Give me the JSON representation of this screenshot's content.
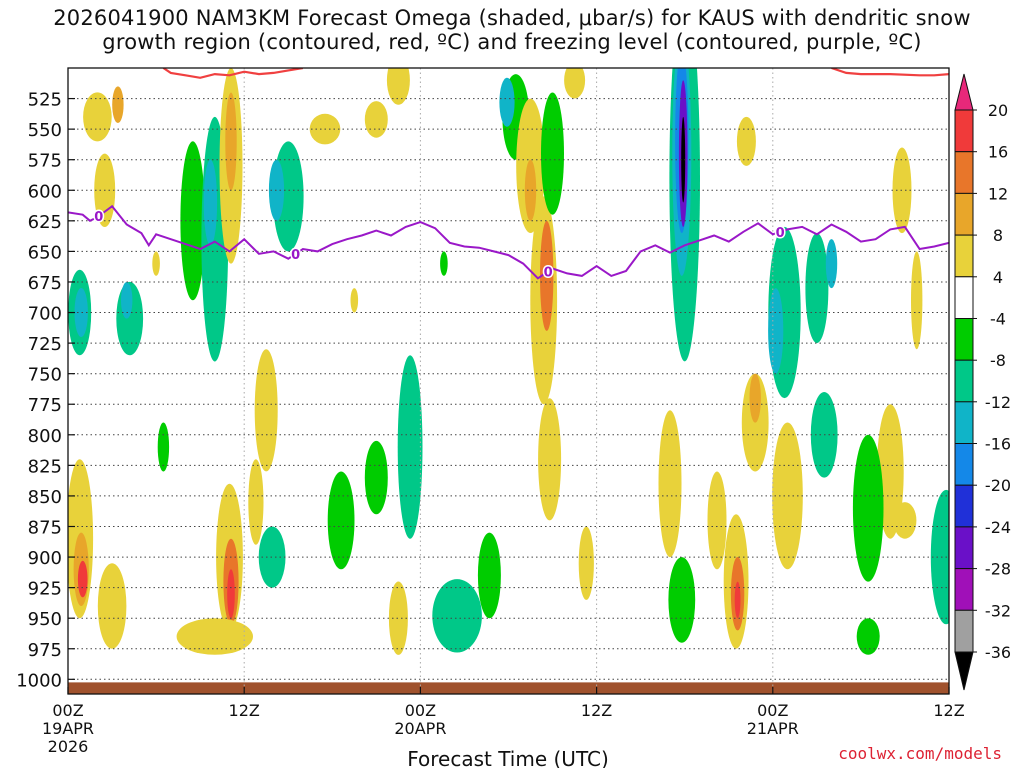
{
  "title_line1": "2026041900 NAM3KM Forecast Omega (shaded, μbar/s) for KAUS with dendritic snow",
  "title_line2": "growth region (contoured, red, ºC) and freezing level (contoured, purple, ºC)",
  "brand": "coolwx.com/models",
  "chart_data": {
    "type": "heatmap",
    "xlabel": "Forecast Time (UTC)",
    "x_ticks": [
      {
        "hour": 0,
        "label": [
          "00Z",
          "19APR",
          "2026"
        ]
      },
      {
        "hour": 12,
        "label": [
          "12Z"
        ]
      },
      {
        "hour": 24,
        "label": [
          "00Z",
          "20APR"
        ]
      },
      {
        "hour": 36,
        "label": [
          "12Z"
        ]
      },
      {
        "hour": 48,
        "label": [
          "00Z",
          "21APR"
        ]
      },
      {
        "hour": 60,
        "label": [
          "12Z"
        ]
      }
    ],
    "xlim_hours": [
      0,
      60
    ],
    "ylabel": "",
    "y_axis": "pressure (hPa), inverted",
    "ylim": [
      1012,
      500
    ],
    "y_ticks": [
      525,
      550,
      575,
      600,
      625,
      650,
      675,
      700,
      725,
      750,
      775,
      800,
      825,
      850,
      875,
      900,
      925,
      950,
      975,
      1000
    ],
    "grid": "dotted",
    "colorbar": {
      "position": "right",
      "unit": "μbar/s",
      "labels": [
        "20",
        "16",
        "12",
        "8",
        "4",
        "-4",
        "-8",
        "-12",
        "-16",
        "-20",
        "-24",
        "-28",
        "-32",
        "-36"
      ],
      "bins": [
        {
          "range": "> 20",
          "color": "#e8287a"
        },
        {
          "range": "16 to 20",
          "color": "#f03a3a"
        },
        {
          "range": "12 to 16",
          "color": "#e8762a"
        },
        {
          "range": "8 to 12",
          "color": "#e8a62a"
        },
        {
          "range": "4 to 8",
          "color": "#e8d23a"
        },
        {
          "range": "-4 to 4",
          "color": "#ffffff"
        },
        {
          "range": "-8 to -4",
          "color": "#00cc00"
        },
        {
          "range": "-12 to -8",
          "color": "#00c888"
        },
        {
          "range": "-16 to -12",
          "color": "#10b4c8"
        },
        {
          "range": "-20 to -16",
          "color": "#1488e8"
        },
        {
          "range": "-24 to -20",
          "color": "#2030d8"
        },
        {
          "range": "-28 to -24",
          "color": "#6a10c8"
        },
        {
          "range": "-32 to -28",
          "color": "#a010b8"
        },
        {
          "range": "-36 to -32",
          "color": "#a0a0a0"
        },
        {
          "range": "< -36",
          "color": "#000000"
        }
      ]
    },
    "freezing_level": {
      "color": "#9a18c8",
      "contour_label": "0",
      "points": [
        [
          0,
          618
        ],
        [
          1,
          620
        ],
        [
          1.5,
          625
        ],
        [
          2,
          622
        ],
        [
          3,
          613
        ],
        [
          4,
          628
        ],
        [
          5,
          635
        ],
        [
          5.5,
          645
        ],
        [
          6,
          636
        ],
        [
          7,
          640
        ],
        [
          8,
          644
        ],
        [
          9,
          648
        ],
        [
          10,
          642
        ],
        [
          11,
          650
        ],
        [
          12,
          640
        ],
        [
          13,
          652
        ],
        [
          14,
          650
        ],
        [
          15,
          656
        ],
        [
          16,
          648
        ],
        [
          17,
          650
        ],
        [
          18,
          644
        ],
        [
          19,
          640
        ],
        [
          20,
          637
        ],
        [
          21,
          633
        ],
        [
          22,
          637
        ],
        [
          23,
          630
        ],
        [
          24,
          626
        ],
        [
          25,
          631
        ],
        [
          26,
          643
        ],
        [
          27,
          646
        ],
        [
          28,
          647
        ],
        [
          29,
          650
        ],
        [
          30,
          653
        ],
        [
          31,
          660
        ],
        [
          32,
          672
        ],
        [
          33,
          664
        ],
        [
          34,
          668
        ],
        [
          35,
          670
        ],
        [
          36,
          662
        ],
        [
          37,
          670
        ],
        [
          38,
          666
        ],
        [
          39,
          650
        ],
        [
          40,
          645
        ],
        [
          41,
          651
        ],
        [
          42,
          645
        ],
        [
          43,
          641
        ],
        [
          44,
          637
        ],
        [
          45,
          642
        ],
        [
          46,
          634
        ],
        [
          47,
          627
        ],
        [
          48,
          636
        ],
        [
          49,
          632
        ],
        [
          50,
          630
        ],
        [
          51,
          636
        ],
        [
          52,
          628
        ],
        [
          53,
          634
        ],
        [
          54,
          642
        ],
        [
          55,
          640
        ],
        [
          56,
          632
        ],
        [
          57,
          630
        ],
        [
          58,
          648
        ],
        [
          59,
          646
        ],
        [
          60,
          643
        ]
      ],
      "labels_at_hours": [
        2.1,
        15.5,
        32.7,
        48.5
      ]
    },
    "dendritic_region": {
      "color": "#f04040",
      "points": [
        [
          6.5,
          500
        ],
        [
          7,
          504
        ],
        [
          8,
          506
        ],
        [
          9,
          508
        ],
        [
          10,
          505
        ],
        [
          11,
          506
        ],
        [
          12,
          503
        ],
        [
          13,
          505
        ],
        [
          14,
          504
        ],
        [
          15,
          502
        ],
        [
          16,
          500
        ]
      ],
      "points2": [
        [
          52,
          500
        ],
        [
          53,
          504
        ],
        [
          54,
          505
        ],
        [
          56,
          505
        ],
        [
          58,
          506
        ],
        [
          59,
          506
        ],
        [
          60,
          505
        ]
      ]
    },
    "omega_cells": [
      {
        "t": 0.8,
        "p": 700,
        "dt": 1.2,
        "dp": 70,
        "v": -8
      },
      {
        "t": 0.9,
        "p": 700,
        "dt": 0.7,
        "dp": 40,
        "v": -14
      },
      {
        "t": 4.2,
        "p": 705,
        "dt": 1.4,
        "dp": 60,
        "v": -9
      },
      {
        "t": 4.0,
        "p": 690,
        "dt": 0.6,
        "dp": 30,
        "v": -13
      },
      {
        "t": 2.5,
        "p": 600,
        "dt": 1.1,
        "dp": 60,
        "v": 6
      },
      {
        "t": 2.0,
        "p": 540,
        "dt": 1.5,
        "dp": 40,
        "v": 6
      },
      {
        "t": 3.4,
        "p": 530,
        "dt": 0.6,
        "dp": 30,
        "v": 10
      },
      {
        "t": 8.5,
        "p": 625,
        "dt": 1.3,
        "dp": 130,
        "v": -6
      },
      {
        "t": 10.0,
        "p": 640,
        "dt": 1.4,
        "dp": 200,
        "v": -9
      },
      {
        "t": 9.7,
        "p": 610,
        "dt": 0.7,
        "dp": 70,
        "v": -15
      },
      {
        "t": 11.1,
        "p": 580,
        "dt": 1.2,
        "dp": 160,
        "v": 6
      },
      {
        "t": 11.1,
        "p": 560,
        "dt": 0.6,
        "dp": 80,
        "v": 12
      },
      {
        "t": 15.0,
        "p": 605,
        "dt": 1.6,
        "dp": 90,
        "v": -8
      },
      {
        "t": 14.2,
        "p": 600,
        "dt": 0.8,
        "dp": 50,
        "v": -13
      },
      {
        "t": 17.5,
        "p": 550,
        "dt": 1.6,
        "dp": 25,
        "v": 6
      },
      {
        "t": 21.0,
        "p": 542,
        "dt": 1.2,
        "dp": 30,
        "v": 6
      },
      {
        "t": 22.5,
        "p": 510,
        "dt": 1.2,
        "dp": 40,
        "v": 6
      },
      {
        "t": 30.5,
        "p": 540,
        "dt": 1.4,
        "dp": 70,
        "v": -7
      },
      {
        "t": 29.9,
        "p": 528,
        "dt": 0.8,
        "dp": 40,
        "v": -13
      },
      {
        "t": 31.5,
        "p": 580,
        "dt": 1.5,
        "dp": 110,
        "v": 6
      },
      {
        "t": 31.5,
        "p": 600,
        "dt": 0.6,
        "dp": 50,
        "v": 12
      },
      {
        "t": 32.4,
        "p": 690,
        "dt": 1.4,
        "dp": 170,
        "v": 7
      },
      {
        "t": 32.6,
        "p": 670,
        "dt": 0.7,
        "dp": 90,
        "v": 14
      },
      {
        "t": 33.0,
        "p": 570,
        "dt": 1.2,
        "dp": 100,
        "v": -7
      },
      {
        "t": 34.5,
        "p": 510,
        "dt": 1.1,
        "dp": 30,
        "v": 6
      },
      {
        "t": 42.0,
        "p": 590,
        "dt": 1.6,
        "dp": 300,
        "v": -8
      },
      {
        "t": 41.8,
        "p": 570,
        "dt": 1.0,
        "dp": 200,
        "v": -14
      },
      {
        "t": 41.8,
        "p": 560,
        "dt": 0.7,
        "dp": 150,
        "v": -18
      },
      {
        "t": 41.9,
        "p": 570,
        "dt": 0.45,
        "dp": 120,
        "v": -27
      },
      {
        "t": 41.9,
        "p": 575,
        "dt": 0.2,
        "dp": 70,
        "v": -40
      },
      {
        "t": 46.2,
        "p": 560,
        "dt": 1.0,
        "dp": 40,
        "v": 6
      },
      {
        "t": 48.8,
        "p": 700,
        "dt": 1.7,
        "dp": 140,
        "v": -9
      },
      {
        "t": 48.2,
        "p": 715,
        "dt": 0.8,
        "dp": 70,
        "v": -13
      },
      {
        "t": 51.0,
        "p": 680,
        "dt": 1.2,
        "dp": 90,
        "v": -10
      },
      {
        "t": 52.0,
        "p": 660,
        "dt": 0.6,
        "dp": 40,
        "v": -14
      },
      {
        "t": 56.8,
        "p": 600,
        "dt": 1.0,
        "dp": 70,
        "v": 6
      },
      {
        "t": 46.8,
        "p": 790,
        "dt": 1.4,
        "dp": 80,
        "v": 6
      },
      {
        "t": 46.8,
        "p": 770,
        "dt": 0.6,
        "dp": 40,
        "v": 12
      },
      {
        "t": 44.2,
        "p": 870,
        "dt": 1.0,
        "dp": 80,
        "v": 6
      },
      {
        "t": 56.0,
        "p": 830,
        "dt": 1.4,
        "dp": 110,
        "v": 6
      },
      {
        "t": 57.0,
        "p": 870,
        "dt": 1.2,
        "dp": 30,
        "v": 6
      },
      {
        "t": 0.8,
        "p": 885,
        "dt": 1.4,
        "dp": 130,
        "v": 7
      },
      {
        "t": 0.9,
        "p": 910,
        "dt": 0.8,
        "dp": 60,
        "v": 12
      },
      {
        "t": 1.0,
        "p": 918,
        "dt": 0.5,
        "dp": 30,
        "v": 20
      },
      {
        "t": 3.0,
        "p": 940,
        "dt": 1.5,
        "dp": 70,
        "v": 6
      },
      {
        "t": 11.0,
        "p": 900,
        "dt": 1.4,
        "dp": 120,
        "v": 7
      },
      {
        "t": 11.1,
        "p": 920,
        "dt": 0.8,
        "dp": 70,
        "v": 13
      },
      {
        "t": 11.1,
        "p": 930,
        "dt": 0.4,
        "dp": 40,
        "v": 19
      },
      {
        "t": 10.0,
        "p": 965,
        "dt": 4.0,
        "dp": 30,
        "v": 6
      },
      {
        "t": 13.5,
        "p": 780,
        "dt": 1.2,
        "dp": 100,
        "v": 6
      },
      {
        "t": 13.9,
        "p": 900,
        "dt": 1.4,
        "dp": 50,
        "v": -8
      },
      {
        "t": 12.8,
        "p": 855,
        "dt": 0.8,
        "dp": 70,
        "v": 6
      },
      {
        "t": 18.6,
        "p": 870,
        "dt": 1.4,
        "dp": 80,
        "v": -7
      },
      {
        "t": 21.0,
        "p": 835,
        "dt": 1.2,
        "dp": 60,
        "v": -7
      },
      {
        "t": 23.3,
        "p": 810,
        "dt": 1.3,
        "dp": 150,
        "v": -8
      },
      {
        "t": 26.5,
        "p": 948,
        "dt": 2.6,
        "dp": 60,
        "v": -9
      },
      {
        "t": 28.7,
        "p": 915,
        "dt": 1.2,
        "dp": 70,
        "v": -7
      },
      {
        "t": 22.5,
        "p": 950,
        "dt": 1.0,
        "dp": 60,
        "v": 6
      },
      {
        "t": 32.8,
        "p": 820,
        "dt": 1.2,
        "dp": 100,
        "v": 6
      },
      {
        "t": 35.3,
        "p": 905,
        "dt": 0.8,
        "dp": 60,
        "v": 6
      },
      {
        "t": 41.0,
        "p": 840,
        "dt": 1.2,
        "dp": 120,
        "v": 6
      },
      {
        "t": 41.8,
        "p": 935,
        "dt": 1.4,
        "dp": 70,
        "v": -7
      },
      {
        "t": 45.5,
        "p": 920,
        "dt": 1.3,
        "dp": 110,
        "v": 7
      },
      {
        "t": 45.6,
        "p": 930,
        "dt": 0.7,
        "dp": 60,
        "v": 13
      },
      {
        "t": 45.6,
        "p": 935,
        "dt": 0.3,
        "dp": 30,
        "v": 18
      },
      {
        "t": 49.0,
        "p": 850,
        "dt": 1.6,
        "dp": 120,
        "v": 6
      },
      {
        "t": 51.5,
        "p": 800,
        "dt": 1.4,
        "dp": 70,
        "v": -8
      },
      {
        "t": 54.5,
        "p": 860,
        "dt": 1.6,
        "dp": 120,
        "v": -7
      },
      {
        "t": 54.5,
        "p": 965,
        "dt": 1.2,
        "dp": 30,
        "v": -7
      },
      {
        "t": 59.8,
        "p": 900,
        "dt": 1.6,
        "dp": 110,
        "v": -8
      },
      {
        "t": 6.5,
        "p": 810,
        "dt": 0.6,
        "dp": 40,
        "v": -7
      },
      {
        "t": 6.0,
        "p": 660,
        "dt": 0.4,
        "dp": 20,
        "v": 6
      },
      {
        "t": 19.5,
        "p": 690,
        "dt": 0.4,
        "dp": 20,
        "v": 6
      },
      {
        "t": 25.6,
        "p": 660,
        "dt": 0.4,
        "dp": 20,
        "v": -7
      },
      {
        "t": 57.8,
        "p": 690,
        "dt": 0.6,
        "dp": 80,
        "v": 6
      }
    ]
  }
}
